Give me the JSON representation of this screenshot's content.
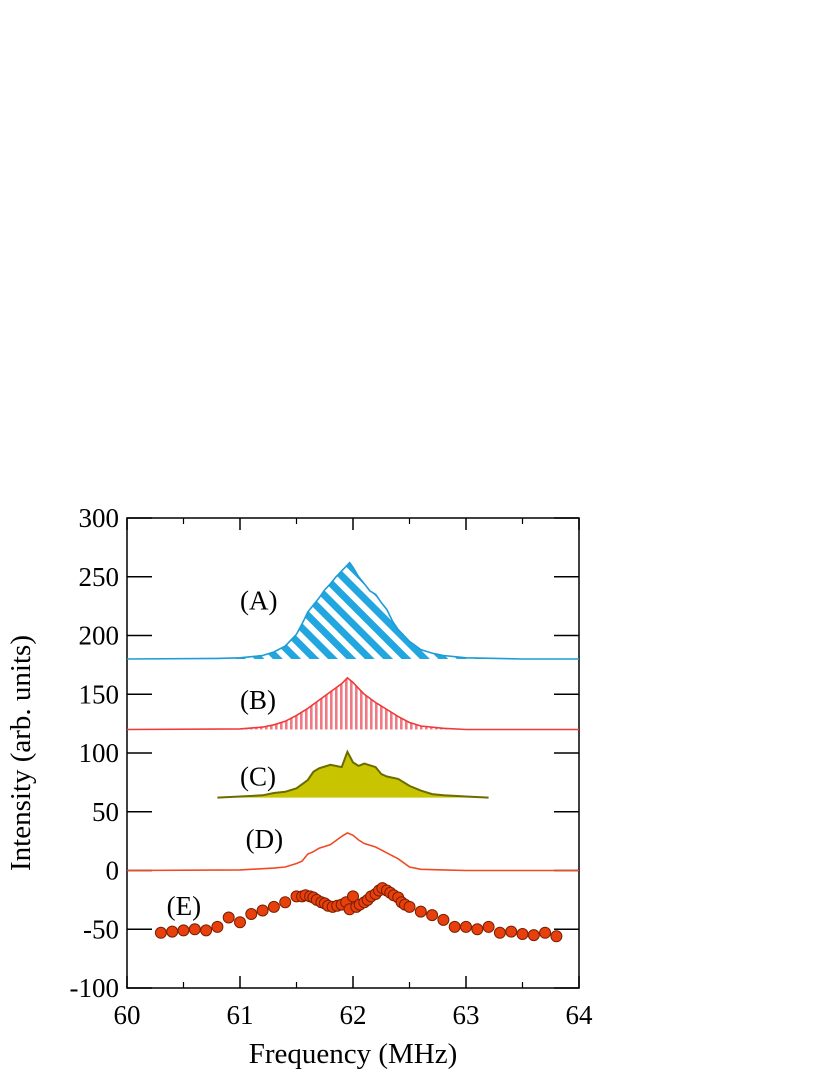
{
  "chart_data": {
    "type": "line",
    "xlabel": "Frequency (MHz)",
    "ylabel": "Intensity (arb. units)",
    "xlim": [
      60,
      64
    ],
    "ylim": [
      -100,
      300
    ],
    "xticks": [
      "60",
      "61",
      "62",
      "63",
      "64"
    ],
    "yticks": [
      "-100",
      "-50",
      "0",
      "50",
      "100",
      "150",
      "200",
      "250",
      "300"
    ],
    "grid": false,
    "colors": {
      "A": "#1f9bd6",
      "B": "#f03a3a",
      "C": "#c9c400",
      "C_edge": "#6b6b00",
      "D": "#f04a24",
      "E": "#e8400c"
    },
    "series": [
      {
        "label": "(A)",
        "label_pos": [
          61.0,
          230
        ],
        "fill": "hatch-diagonal",
        "x": [
          60.0,
          60.8,
          61.0,
          61.2,
          61.3,
          61.4,
          61.5,
          61.55,
          61.6,
          61.65,
          61.7,
          61.75,
          61.8,
          61.85,
          61.9,
          61.95,
          61.97,
          62.0,
          62.05,
          62.1,
          62.15,
          62.2,
          62.25,
          62.3,
          62.35,
          62.4,
          62.5,
          62.6,
          62.7,
          62.8,
          63.0,
          63.5,
          64.0
        ],
        "y": [
          180,
          180.5,
          181,
          183,
          186,
          191,
          201,
          210,
          220,
          226,
          232,
          239,
          244,
          250,
          255,
          260,
          262,
          258,
          250,
          244,
          238,
          235,
          228,
          222,
          212,
          205,
          195,
          188,
          185,
          183,
          181,
          180,
          180
        ]
      },
      {
        "label": "(B)",
        "label_pos": [
          61.0,
          145
        ],
        "fill": "hatch-vertical",
        "x": [
          60.0,
          61.0,
          61.2,
          61.3,
          61.4,
          61.5,
          61.6,
          61.7,
          61.8,
          61.9,
          61.95,
          62.0,
          62.05,
          62.1,
          62.2,
          62.3,
          62.4,
          62.5,
          62.6,
          62.8,
          63.0,
          64.0
        ],
        "y": [
          120,
          120.5,
          122,
          124,
          127,
          132,
          138,
          145,
          152,
          159,
          164,
          160,
          155,
          150,
          143,
          137,
          131,
          126,
          123,
          121,
          120,
          120
        ]
      },
      {
        "label": "(C)",
        "label_pos": [
          61.0,
          80
        ],
        "fill": "solid",
        "x": [
          60.8,
          61.0,
          61.2,
          61.3,
          61.4,
          61.5,
          61.6,
          61.65,
          61.7,
          61.8,
          61.9,
          61.95,
          62.0,
          62.05,
          62.1,
          62.2,
          62.25,
          62.3,
          62.4,
          62.5,
          62.6,
          62.7,
          62.8,
          63.0,
          63.2
        ],
        "y": [
          62,
          63,
          64,
          66,
          67,
          70,
          77,
          84,
          87,
          90,
          88,
          101,
          92,
          89,
          91,
          88,
          82,
          80,
          78,
          72,
          68,
          65,
          64,
          63,
          62
        ]
      },
      {
        "label": "(D)",
        "label_pos": [
          61.05,
          27
        ],
        "fill": "none",
        "x": [
          60.0,
          61.0,
          61.3,
          61.4,
          61.5,
          61.55,
          61.6,
          61.65,
          61.7,
          61.8,
          61.9,
          61.95,
          62.0,
          62.05,
          62.1,
          62.2,
          62.3,
          62.4,
          62.5,
          62.6,
          62.8,
          63.0,
          64.0
        ],
        "y": [
          0,
          0.5,
          2,
          3,
          6,
          8,
          14,
          16,
          19,
          22,
          29,
          32,
          30,
          26,
          23,
          20,
          15,
          10,
          3,
          1,
          0.5,
          0,
          0
        ],
        "line": true
      },
      {
        "label": "(E)",
        "label_pos": [
          60.35,
          -30
        ],
        "fill": "none",
        "markers": "circle",
        "x": [
          60.3,
          60.4,
          60.5,
          60.6,
          60.7,
          60.8,
          60.9,
          61.0,
          61.1,
          61.2,
          61.3,
          61.4,
          61.5,
          61.55,
          61.58,
          61.62,
          61.65,
          61.68,
          61.72,
          61.75,
          61.78,
          61.82,
          61.86,
          61.9,
          61.94,
          61.97,
          62.0,
          62.03,
          62.06,
          62.1,
          62.13,
          62.16,
          62.2,
          62.23,
          62.26,
          62.3,
          62.33,
          62.36,
          62.4,
          62.43,
          62.46,
          62.5,
          62.6,
          62.7,
          62.8,
          62.9,
          63.0,
          63.1,
          63.2,
          63.3,
          63.4,
          63.5,
          63.6,
          63.7,
          63.8
        ],
        "y": [
          -53,
          -52,
          -51,
          -50,
          -51,
          -48,
          -40,
          -44,
          -37,
          -34,
          -31,
          -27,
          -22,
          -22,
          -21,
          -22,
          -23,
          -25,
          -27,
          -28,
          -30,
          -31,
          -30,
          -29,
          -27,
          -33,
          -22,
          -31,
          -29,
          -27,
          -25,
          -22,
          -20,
          -17,
          -15,
          -17,
          -19,
          -21,
          -23,
          -27,
          -29,
          -31,
          -35,
          -38,
          -42,
          -48,
          -48,
          -50,
          -48,
          -53,
          -52,
          -54,
          -55,
          -53,
          -56
        ]
      }
    ]
  }
}
